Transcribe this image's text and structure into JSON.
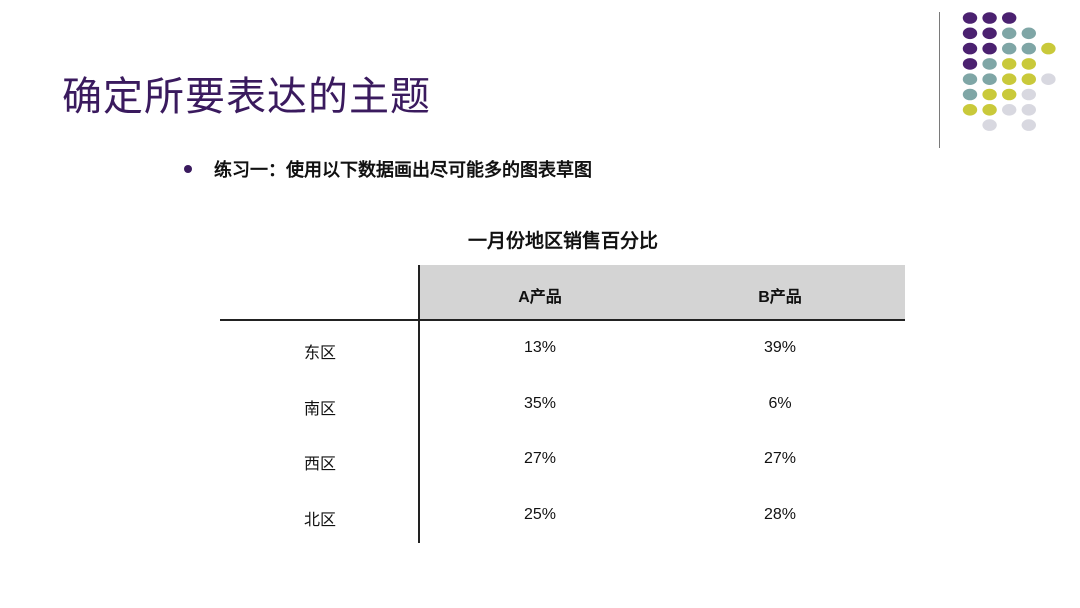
{
  "title": "确定所要表达的主题",
  "bullet": "练习一：使用以下数据画出尽可能多的图表草图",
  "table": {
    "title": "一月份地区销售百分比",
    "columns": [
      "A产品",
      "B产品"
    ],
    "rows": [
      {
        "label": "东区",
        "a": "13%",
        "b": "39%"
      },
      {
        "label": "南区",
        "a": "35%",
        "b": "6%"
      },
      {
        "label": "西区",
        "a": "27%",
        "b": "27%"
      },
      {
        "label": "北区",
        "a": "25%",
        "b": "28%"
      }
    ]
  },
  "colors": {
    "purple": "#4b2170",
    "teal": "#7fa6a6",
    "yellow": "#c9c93a",
    "light_gray": "#d8d8e0"
  },
  "decoration_grid": [
    [
      "purple",
      "purple",
      "purple",
      null,
      null,
      null
    ],
    [
      "purple",
      "purple",
      "teal",
      "teal",
      null,
      null
    ],
    [
      "purple",
      "purple",
      "teal",
      "teal",
      "yellow",
      null
    ],
    [
      "purple",
      "teal",
      "yellow",
      "yellow",
      null,
      null
    ],
    [
      "teal",
      "teal",
      "yellow",
      "yellow",
      "light_gray",
      null
    ],
    [
      "teal",
      "yellow",
      "yellow",
      "light_gray",
      null,
      null
    ],
    [
      "yellow",
      "yellow",
      "light_gray",
      "light_gray",
      null,
      null
    ],
    [
      null,
      "light_gray",
      null,
      "light_gray",
      null,
      null
    ]
  ]
}
